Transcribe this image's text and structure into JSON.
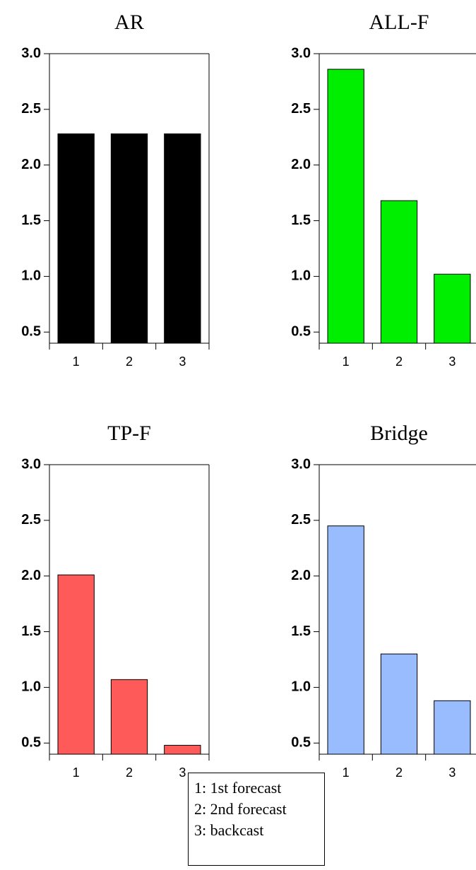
{
  "chart_data": [
    {
      "type": "bar",
      "title": "AR",
      "categories": [
        "1",
        "2",
        "3"
      ],
      "values": [
        2.28,
        2.28,
        2.28
      ],
      "color": "#000000",
      "ylim": [
        0.4,
        3.0
      ],
      "yticks": [
        "0.5",
        "1.0",
        "1.5",
        "2.0",
        "2.5",
        "3.0"
      ],
      "xlabel": "",
      "ylabel": "",
      "grid": false
    },
    {
      "type": "bar",
      "title": "ALL-F",
      "categories": [
        "1",
        "2",
        "3"
      ],
      "values": [
        2.86,
        1.68,
        1.02
      ],
      "color": "#00ee00",
      "ylim": [
        0.4,
        3.0
      ],
      "yticks": [
        "0.5",
        "1.0",
        "1.5",
        "2.0",
        "2.5",
        "3.0"
      ],
      "xlabel": "",
      "ylabel": "",
      "grid": false
    },
    {
      "type": "bar",
      "title": "TP-F",
      "categories": [
        "1",
        "2",
        "3"
      ],
      "values": [
        2.01,
        1.07,
        0.48
      ],
      "color": "#ff5a5a",
      "ylim": [
        0.4,
        3.0
      ],
      "yticks": [
        "0.5",
        "1.0",
        "1.5",
        "2.0",
        "2.5",
        "3.0"
      ],
      "xlabel": "",
      "ylabel": "",
      "grid": false
    },
    {
      "type": "bar",
      "title": "Bridge",
      "categories": [
        "1",
        "2",
        "3"
      ],
      "values": [
        2.45,
        1.3,
        0.88
      ],
      "color": "#99bbff",
      "ylim": [
        0.4,
        3.0
      ],
      "yticks": [
        "0.5",
        "1.0",
        "1.5",
        "2.0",
        "2.5",
        "3.0"
      ],
      "xlabel": "",
      "ylabel": "",
      "grid": false
    }
  ],
  "legend": [
    "1: 1st forecast",
    "2: 2nd forecast",
    "3: backcast"
  ]
}
